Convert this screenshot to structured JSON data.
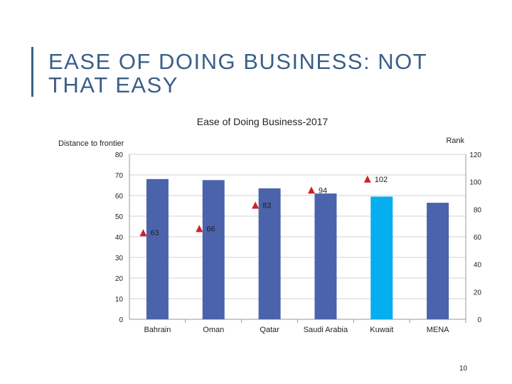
{
  "slide": {
    "title": "EASE OF DOING BUSINESS: NOT THAT EASY",
    "page_number": "10"
  },
  "chart_data": {
    "type": "bar",
    "title": "Ease of Doing Business-2017",
    "ylabel": "Distance to frontier",
    "y2label": "Rank",
    "categories": [
      "Bahrain",
      "Oman",
      "Qatar",
      "Saudi Arabia",
      "Kuwait",
      "MENA"
    ],
    "ylim": [
      0,
      80
    ],
    "y2lim": [
      0,
      120
    ],
    "yticks": [
      0,
      10,
      20,
      30,
      40,
      50,
      60,
      70,
      80
    ],
    "y2ticks": [
      0,
      20,
      40,
      60,
      80,
      100,
      120
    ],
    "series": [
      {
        "name": "Distance to frontier",
        "type": "bar",
        "axis": "left",
        "values": [
          68,
          67.5,
          63.5,
          61,
          59.5,
          56.5
        ],
        "colors": [
          "#4a63ab",
          "#4a63ab",
          "#4a63ab",
          "#4a63ab",
          "#06aeee",
          "#4a63ab"
        ]
      },
      {
        "name": "Rank",
        "type": "marker",
        "axis": "right",
        "marker": "triangle",
        "color": "#d0202a",
        "values": [
          63,
          66,
          83,
          94,
          102,
          null
        ],
        "labels": [
          "63",
          "66",
          "83",
          "94",
          "102",
          ""
        ]
      }
    ],
    "grid": true
  }
}
